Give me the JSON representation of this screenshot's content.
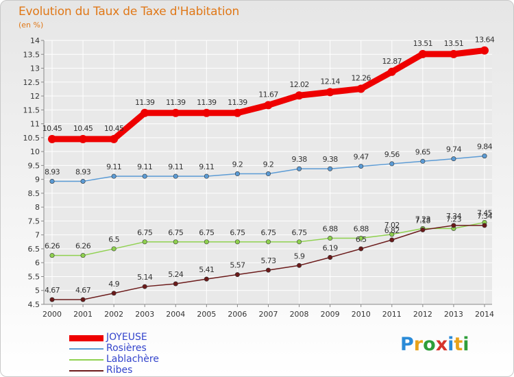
{
  "title": "Evolution du Taux de Taxe d'Habitation",
  "subtitle": "(en %)",
  "brand": "Proxiti",
  "colors": {
    "title": "#e07818",
    "legend_text": "#3344cc",
    "axis": "#888888",
    "grid": "#ffffff",
    "label": "#333333"
  },
  "chart_data": {
    "type": "line",
    "x": [
      "2000",
      "2001",
      "2002",
      "2003",
      "2004",
      "2005",
      "2006",
      "2007",
      "2008",
      "2009",
      "2010",
      "2011",
      "2012",
      "2013",
      "2014"
    ],
    "ylim": [
      4.5,
      14
    ],
    "yticks": [
      "4.5",
      "5",
      "5.5",
      "6",
      "6.5",
      "7",
      "7.5",
      "8",
      "8.5",
      "9",
      "9.5",
      "10",
      "10.5",
      "11",
      "11.5",
      "12",
      "12.5",
      "13",
      "13.5",
      "14"
    ],
    "grid": true,
    "legend_position": "bottom-left",
    "series": [
      {
        "name": "JOYEUSE",
        "color": "#ee0000",
        "values": [
          10.45,
          10.45,
          10.45,
          11.39,
          11.39,
          11.39,
          11.39,
          11.67,
          12.02,
          12.14,
          12.26,
          12.87,
          13.51,
          13.51,
          13.64
        ],
        "labels": [
          "10.45",
          "10.45",
          "10.45",
          "11.39",
          "11.39",
          "11.39",
          "11.39",
          "11.67",
          "12.02",
          "12.14",
          "12.26",
          "12.87",
          "13.51",
          "13.51",
          "13.64"
        ]
      },
      {
        "name": "Rosières",
        "color": "#5b9bd5",
        "values": [
          8.93,
          8.93,
          9.11,
          9.11,
          9.11,
          9.11,
          9.2,
          9.2,
          9.38,
          9.38,
          9.47,
          9.56,
          9.65,
          9.74,
          9.84
        ],
        "labels": [
          "8.93",
          "8.93",
          "9.11",
          "9.11",
          "9.11",
          "9.11",
          "9.2",
          "9.2",
          "9.38",
          "9.38",
          "9.47",
          "9.56",
          "9.65",
          "9.74",
          "9.84"
        ]
      },
      {
        "name": "Lablachère",
        "color": "#8fd14f",
        "values": [
          6.26,
          6.26,
          6.5,
          6.75,
          6.75,
          6.75,
          6.75,
          6.75,
          6.75,
          6.88,
          6.88,
          7.02,
          7.23,
          7.23,
          7.45
        ],
        "labels": [
          "6.26",
          "6.26",
          "6.5",
          "6.75",
          "6.75",
          "6.75",
          "6.75",
          "6.75",
          "6.75",
          "6.88",
          "6.88",
          "7.02",
          "7.23",
          "7.23",
          "7.45"
        ]
      },
      {
        "name": "Ribes",
        "color": "#6b1a1a",
        "values": [
          4.67,
          4.67,
          4.9,
          5.14,
          5.24,
          5.41,
          5.57,
          5.73,
          5.9,
          6.19,
          6.5,
          6.82,
          7.18,
          7.34,
          7.34
        ],
        "labels": [
          "4.67",
          "4.67",
          "4.9",
          "5.14",
          "5.24",
          "5.41",
          "5.57",
          "5.73",
          "5.9",
          "6.19",
          "6.5",
          "6.82",
          "7.18",
          "7.34",
          "7.34"
        ]
      }
    ]
  }
}
